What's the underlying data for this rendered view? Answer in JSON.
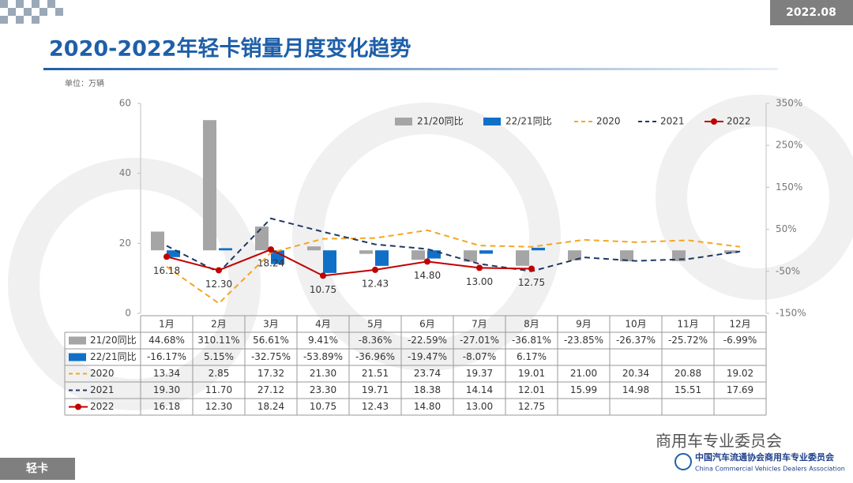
{
  "header": {
    "date": "2022.08",
    "title": "2020-2022年轻卡销量月度变化趋势",
    "unit": "单位：万辆"
  },
  "footer": {
    "label": "轻卡",
    "watermark": "商用车专业委员会",
    "org_cn": "中国汽车流通协会商用车专业委员会",
    "org_en": "China Commercial Vehicles Dealers Association"
  },
  "chart_data": {
    "type": "combo",
    "categories": [
      "1月",
      "2月",
      "3月",
      "4月",
      "5月",
      "6月",
      "7月",
      "8月",
      "9月",
      "10月",
      "11月",
      "12月"
    ],
    "ylim": [
      0,
      60
    ],
    "yticks": [
      0,
      20,
      40,
      60
    ],
    "y2lim": [
      -150,
      350
    ],
    "y2ticks": [
      {
        "value": -150,
        "label": "-150%"
      },
      {
        "value": -50,
        "label": "-50%"
      },
      {
        "value": 50,
        "label": "50%"
      },
      {
        "value": 150,
        "label": "150%"
      },
      {
        "value": 250,
        "label": "250%"
      },
      {
        "value": 350,
        "label": "350%"
      }
    ],
    "legend": "top-right",
    "grid": false,
    "data_table": true,
    "series": [
      {
        "name": "21/20同比",
        "type": "bar",
        "axis": "y2",
        "color": "#a5a5a5",
        "values": [
          44.68,
          310.11,
          56.61,
          9.41,
          -8.36,
          -22.59,
          -27.01,
          -36.81,
          -23.85,
          -26.37,
          -25.72,
          -6.99
        ],
        "value_labels": [
          "44.68%",
          "310.11%",
          "56.61%",
          "9.41%",
          "-8.36%",
          "-22.59%",
          "-27.01%",
          "-36.81%",
          "-23.85%",
          "-26.37%",
          "-25.72%",
          "-6.99%"
        ]
      },
      {
        "name": "22/21同比",
        "type": "bar",
        "axis": "y2",
        "color": "#1070c8",
        "values": [
          -16.17,
          5.15,
          -32.75,
          -53.89,
          -36.96,
          -19.47,
          -8.07,
          6.17,
          null,
          null,
          null,
          null
        ],
        "value_labels": [
          "-16.17%",
          "5.15%",
          "-32.75%",
          "-53.89%",
          "-36.96%",
          "-19.47%",
          "-8.07%",
          "6.17%",
          null,
          null,
          null,
          null
        ]
      },
      {
        "name": "2020",
        "type": "line",
        "line_style": "dashed",
        "color": "#f5a623",
        "values": [
          13.34,
          2.85,
          17.32,
          21.3,
          21.51,
          23.74,
          19.37,
          19.01,
          21.0,
          20.34,
          20.88,
          19.02
        ],
        "value_labels": [
          "13.34",
          "2.85",
          "17.32",
          "21.30",
          "21.51",
          "23.74",
          "19.37",
          "19.01",
          "21.00",
          "20.34",
          "20.88",
          "19.02"
        ]
      },
      {
        "name": "2021",
        "type": "line",
        "line_style": "dashed",
        "color": "#203864",
        "values": [
          19.3,
          11.7,
          27.12,
          23.3,
          19.71,
          18.38,
          14.14,
          12.01,
          15.99,
          14.98,
          15.51,
          17.69
        ],
        "value_labels": [
          "19.30",
          "11.70",
          "27.12",
          "23.30",
          "19.71",
          "18.38",
          "14.14",
          "12.01",
          "15.99",
          "14.98",
          "15.51",
          "17.69"
        ]
      },
      {
        "name": "2022",
        "type": "line",
        "line_style": "solid",
        "marker": "circle",
        "color": "#c00000",
        "show_labels": true,
        "values": [
          16.18,
          12.3,
          18.24,
          10.75,
          12.43,
          14.8,
          13.0,
          12.75,
          null,
          null,
          null,
          null
        ],
        "value_labels": [
          "16.18",
          "12.30",
          "18.24",
          "10.75",
          "12.43",
          "14.80",
          "13.00",
          "12.75",
          null,
          null,
          null,
          null
        ]
      }
    ]
  }
}
